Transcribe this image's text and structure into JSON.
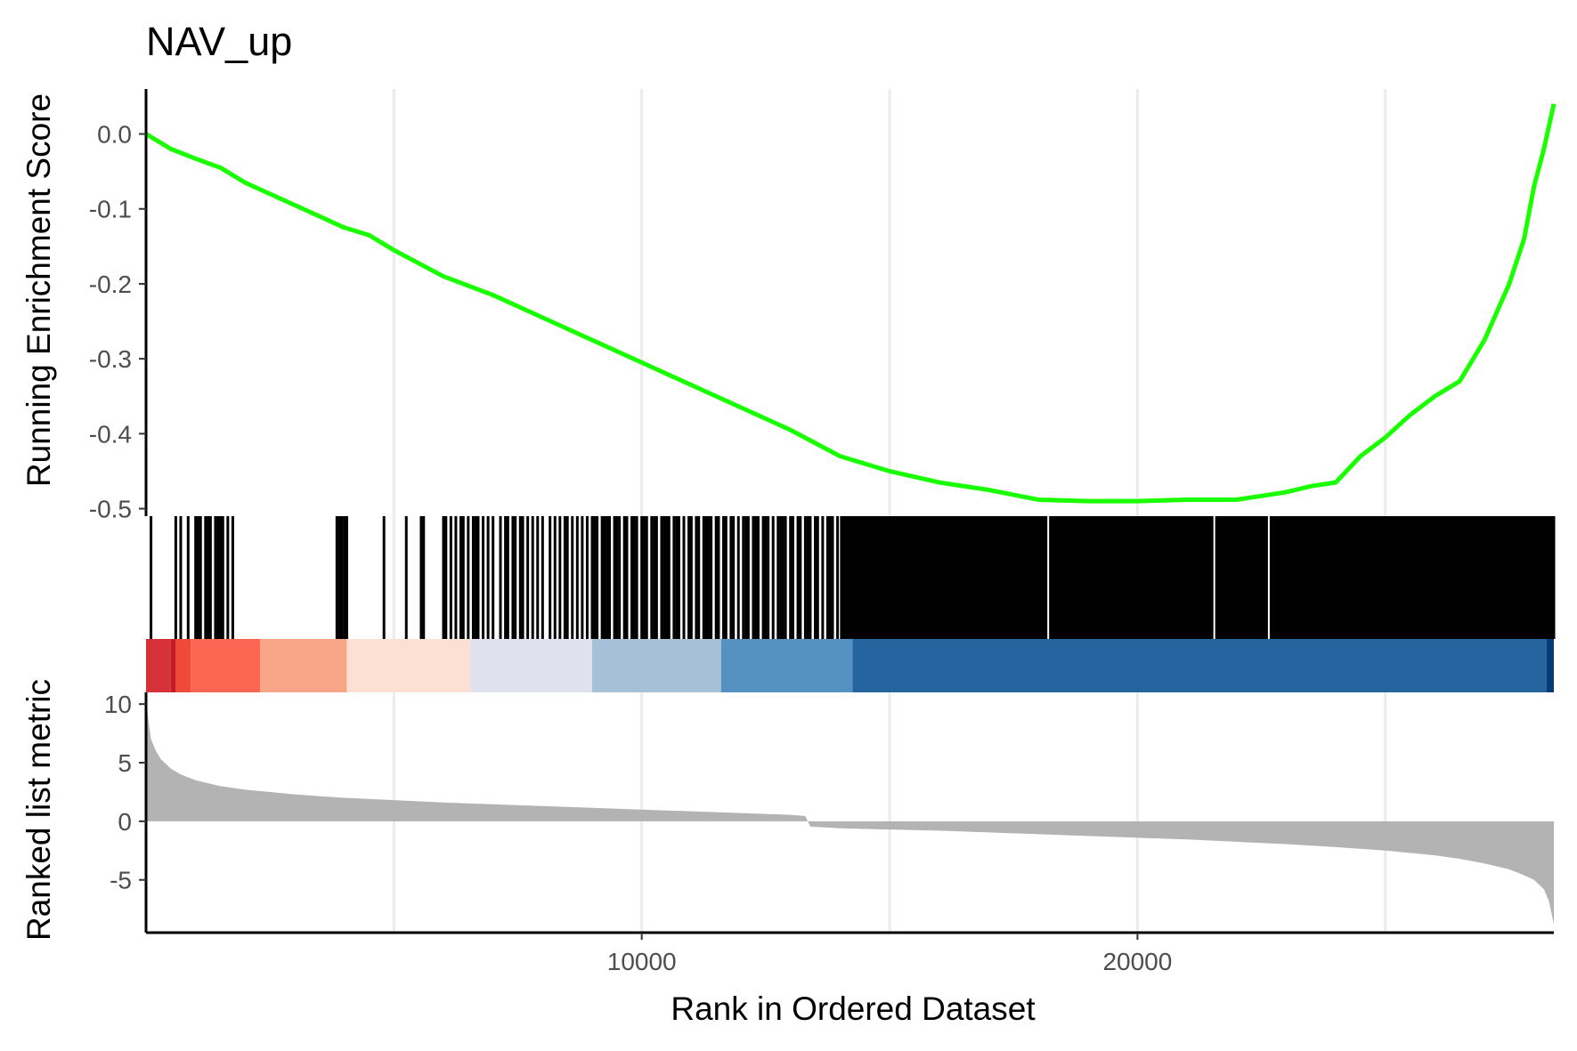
{
  "chart_data": {
    "type": "line",
    "title": "NAV_up",
    "xlabel": "Rank in Ordered Dataset",
    "xlim": [
      0,
      28400
    ],
    "x_ticks": [
      10000,
      20000
    ],
    "x_gridlines": [
      5000,
      10000,
      15000,
      20000,
      25000
    ],
    "grid": "vertical major gridlines only",
    "legend": "none",
    "colors": {
      "es_line": "#1aff00",
      "ranked_metric_fill": "#b3b3b3",
      "hits": "#000000",
      "gridline": "#ebebeb",
      "axis": "#000000"
    },
    "panels": [
      {
        "name": "running-enrichment",
        "ylabel": "Running Enrichment Score",
        "ylim": [
          -0.51,
          0.06
        ],
        "y_ticks": [
          0.0,
          -0.1,
          -0.2,
          -0.3,
          -0.4,
          -0.5
        ],
        "y_tick_labels": [
          "0.0",
          "-0.1",
          "-0.2",
          "-0.3",
          "-0.4",
          "-0.5"
        ],
        "series": [
          {
            "x": [
              0,
              500,
              1000,
              1500,
              2000,
              3000,
              4000,
              4500,
              5000,
              6000,
              7000,
              8000,
              9000,
              10000,
              11000,
              12000,
              13000,
              14000,
              15000,
              16000,
              17000,
              18000,
              19000,
              20000,
              21000,
              22000,
              23000,
              23500,
              24000,
              24500,
              25000,
              25500,
              26000,
              26500,
              27000,
              27500,
              27800,
              28000,
              28200,
              28400
            ],
            "y": [
              0.0,
              -0.02,
              -0.033,
              -0.045,
              -0.065,
              -0.095,
              -0.125,
              -0.135,
              -0.155,
              -0.19,
              -0.215,
              -0.245,
              -0.275,
              -0.305,
              -0.335,
              -0.365,
              -0.395,
              -0.43,
              -0.45,
              -0.465,
              -0.475,
              -0.488,
              -0.49,
              -0.49,
              -0.488,
              -0.488,
              -0.478,
              -0.47,
              -0.465,
              -0.43,
              -0.405,
              -0.375,
              -0.35,
              -0.33,
              -0.275,
              -0.2,
              -0.14,
              -0.07,
              -0.02,
              0.04
            ]
          }
        ]
      },
      {
        "name": "gene-hits",
        "hit_positions": [
          100,
          600,
          700,
          850,
          1000,
          1050,
          1100,
          1200,
          1250,
          1300,
          1400,
          1450,
          1500,
          1550,
          1650,
          1750,
          3850,
          3900,
          3950,
          4000,
          4050,
          4050,
          4800,
          5250,
          5550,
          5600,
          6000,
          6050,
          6150,
          6250,
          6350,
          6400,
          6500,
          6600,
          6650,
          6700,
          6800,
          6900,
          7000,
          7150,
          7250,
          7300,
          7400,
          7450,
          7550,
          7600,
          7700,
          7800,
          7900,
          8000,
          8150,
          8250,
          8350,
          8450,
          8500,
          8600,
          8700,
          8800,
          8900,
          9000,
          9050,
          9100,
          9200,
          9250,
          9300,
          9350,
          9450,
          9500,
          9550,
          9650,
          9700,
          9800,
          9850,
          9900,
          10000,
          10050,
          10100,
          10200,
          10250,
          10300,
          10400,
          10450,
          10500,
          10550,
          10650,
          10700,
          10750,
          10850,
          10950,
          11000,
          11100,
          11150,
          11250,
          11300,
          11350,
          11400,
          11500,
          11550,
          11650,
          11700,
          11800,
          11850,
          11950,
          12050,
          12100,
          12150,
          12250,
          12300,
          12350,
          12450,
          12500,
          12550,
          12650,
          12750,
          12800,
          12850,
          12900,
          13000,
          13050,
          13150,
          13200,
          13300,
          13350,
          13400,
          13500,
          13550,
          13650,
          13750,
          13800,
          13850,
          13950,
          14050,
          14100,
          14150,
          14200,
          14250,
          14300,
          14400,
          14450,
          14500,
          14600,
          14650,
          14700,
          14800,
          14850,
          14900,
          15000,
          15050,
          15100,
          15200,
          15250,
          15300,
          15400,
          15450,
          15500,
          15600,
          15650,
          15700,
          15800,
          15850,
          15900,
          16000,
          16050,
          16100,
          16200,
          16250,
          16300,
          16400,
          16450,
          16500,
          16600,
          16650,
          16700,
          16800,
          16850,
          16900,
          17000,
          17050,
          17100,
          17200,
          17250,
          17300,
          17400,
          17450,
          17500,
          17600,
          17650,
          17700,
          17800,
          17850,
          17900,
          18000,
          18050,
          18100,
          18200,
          18250,
          18300,
          18400,
          18450,
          18500,
          18600,
          18650,
          18700,
          18800,
          18850,
          18900,
          19000,
          19050,
          19100,
          19200,
          19250,
          19300,
          19400,
          19450,
          19500,
          19600,
          19650,
          19700,
          19800,
          19850,
          19900,
          20000,
          20050,
          20100,
          20200,
          20250,
          20300,
          20400,
          20450,
          20500,
          20600,
          20650,
          20700,
          20800,
          20850,
          20900,
          21000,
          21050,
          21100,
          21200,
          21250,
          21300,
          21400,
          21450,
          21500,
          21600,
          21650,
          21700,
          21800,
          21850,
          21900,
          22000,
          22050,
          22100,
          22200,
          22250,
          22300,
          22400,
          22450,
          22500,
          22600,
          22650,
          22700,
          22800,
          22850,
          22900,
          23000,
          23050,
          23100,
          23200,
          23250,
          23300,
          23400,
          23450,
          23500,
          23600,
          23650,
          23700,
          23800,
          23850,
          23900,
          24000,
          24050,
          24100,
          24200,
          24250,
          24300,
          24400,
          24450,
          24500,
          24600,
          24650,
          24700,
          24800,
          24850,
          24900,
          25000,
          25050,
          25100,
          25200,
          25250,
          25300,
          25400,
          25450,
          25500,
          25600,
          25650,
          25700,
          25800,
          25850,
          25900,
          26000,
          26050,
          26100,
          26200,
          26250,
          26300,
          26400,
          26450,
          26500,
          26600,
          26650,
          26700,
          26800,
          26850,
          26900,
          27000,
          27050,
          27100,
          27200,
          27250,
          27300,
          27400,
          27450,
          27500,
          27600,
          27650,
          27700,
          27800,
          27850,
          27900,
          28000,
          28050,
          28100,
          28200,
          28250,
          28300,
          28350,
          28400
        ],
        "dense_from": 14000,
        "dense_to": 28400
      },
      {
        "name": "ranked-list-metric",
        "ylabel": "Ranked list metric",
        "ylim": [
          -9.5,
          11
        ],
        "y_ticks": [
          10,
          5,
          0,
          -5
        ],
        "y_tick_labels": [
          "10",
          "5",
          "0",
          "-5"
        ],
        "series": [
          {
            "x": [
              0,
              50,
              100,
              200,
              300,
              500,
              700,
              1000,
              1500,
              2000,
              3000,
              4000,
              5000,
              6000,
              7000,
              8000,
              9000,
              10000,
              11000,
              12000,
              13000,
              13300,
              13400,
              14000,
              15000,
              16000,
              17000,
              18000,
              19000,
              20000,
              21000,
              22000,
              23000,
              24000,
              25000,
              26000,
              26500,
              27000,
              27500,
              27800,
              28000,
              28200,
              28300,
              28400
            ],
            "y": [
              10.5,
              8.5,
              7.0,
              6.0,
              5.3,
              4.5,
              4.0,
              3.5,
              3.0,
              2.7,
              2.3,
              2.0,
              1.8,
              1.6,
              1.45,
              1.3,
              1.15,
              1.0,
              0.85,
              0.7,
              0.55,
              0.45,
              -0.45,
              -0.6,
              -0.7,
              -0.8,
              -0.95,
              -1.1,
              -1.25,
              -1.4,
              -1.55,
              -1.75,
              -1.95,
              -2.2,
              -2.5,
              -2.9,
              -3.2,
              -3.6,
              -4.1,
              -4.6,
              -5.0,
              -5.8,
              -6.8,
              -8.8
            ]
          }
        ]
      }
    ],
    "heatmap_bands": [
      {
        "from": 0,
        "to": 500,
        "color": "#d53137"
      },
      {
        "from": 500,
        "to": 600,
        "color": "#c61a24"
      },
      {
        "from": 600,
        "to": 900,
        "color": "#ee4a38"
      },
      {
        "from": 900,
        "to": 2300,
        "color": "#fa6651"
      },
      {
        "from": 2300,
        "to": 4050,
        "color": "#f9a688"
      },
      {
        "from": 4050,
        "to": 6550,
        "color": "#fde0d4"
      },
      {
        "from": 6550,
        "to": 9000,
        "color": "#dfe1ef"
      },
      {
        "from": 9000,
        "to": 11600,
        "color": "#a6c0d8"
      },
      {
        "from": 11600,
        "to": 14250,
        "color": "#5592c2"
      },
      {
        "from": 14250,
        "to": 28250,
        "color": "#26649f"
      },
      {
        "from": 28250,
        "to": 28400,
        "color": "#083a7a"
      }
    ]
  }
}
